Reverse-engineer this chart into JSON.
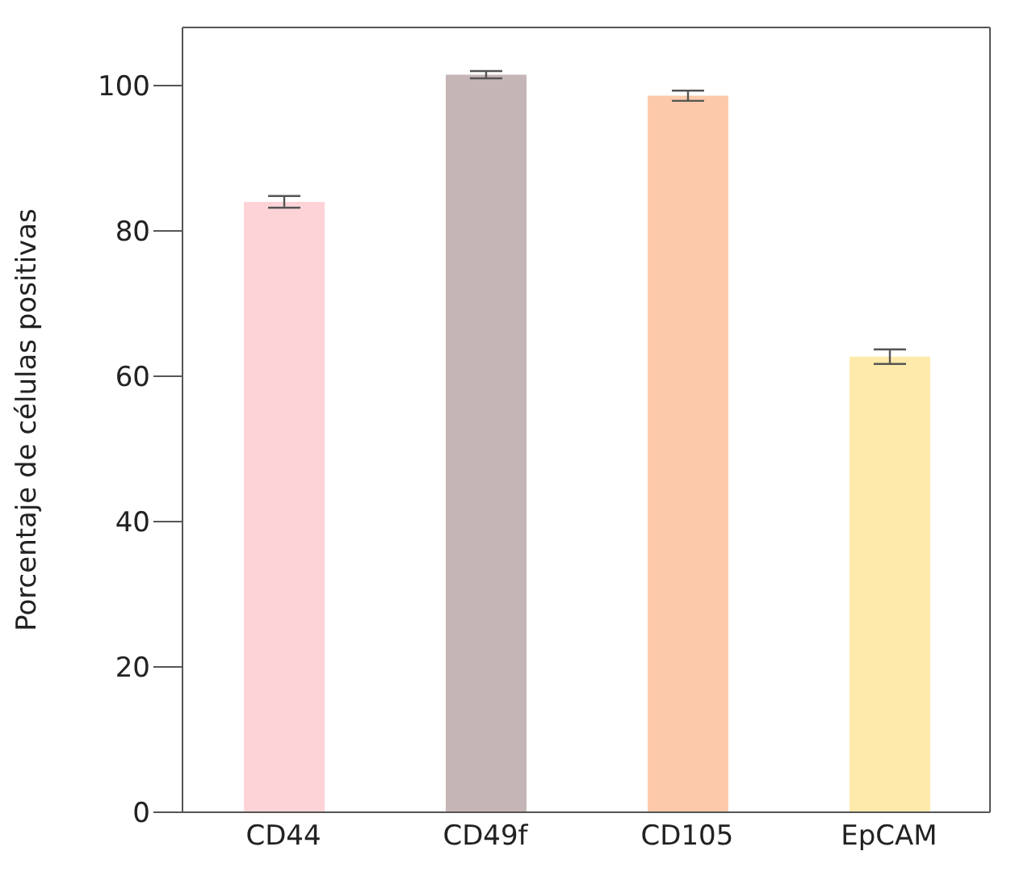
{
  "chart_data": {
    "type": "bar",
    "ylabel": "Porcentaje de células positivas",
    "categories": [
      "CD44",
      "CD49f",
      "CD105",
      "EpCAM"
    ],
    "values": [
      84,
      101.5,
      98.6,
      62.7
    ],
    "errors": [
      0.8,
      0.5,
      0.7,
      1
    ],
    "colors": [
      "#fdd3d8",
      "#c5b5b6",
      "#fccaaa",
      "#feeaaa"
    ],
    "ylim": [
      0,
      108
    ],
    "yticks": [
      0,
      20,
      40,
      60,
      80,
      100
    ],
    "grid": false
  }
}
